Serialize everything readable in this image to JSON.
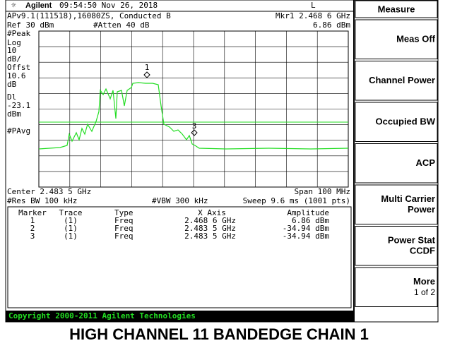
{
  "status_bar": {
    "brand": "Agilent",
    "time": "09:54:50  Nov 26, 2018",
    "mode": "L"
  },
  "header": {
    "setup": "APv9.1(111518),16080ZS, Conducted B",
    "marker_freq": "Mkr1  2.468 6 GHz",
    "ref": "Ref 30 dBm",
    "atten": "#Atten 40 dB",
    "marker_amp": "6.86 dBm"
  },
  "left_labels": [
    "#Peak",
    "Log",
    "10",
    "dB/",
    "Offst",
    "10.6",
    "dB",
    "Dl",
    "-23.1",
    "dBm",
    "#PAvg"
  ],
  "footer": {
    "center": "Center 2.483 5 GHz",
    "span": "Span 100 MHz",
    "rbw": "#Res BW 100 kHz",
    "vbw": "#VBW 300 kHz",
    "sweep": "Sweep 9.6 ms (1001 pts)"
  },
  "marker_labels": [
    "1",
    "3"
  ],
  "table": {
    "columns": [
      "Marker",
      "Trace",
      "Type",
      "X Axis",
      "Amplitude"
    ],
    "rows": [
      [
        "1",
        "(1)",
        "Freq",
        "2.468 6 GHz",
        "6.86 dBm"
      ],
      [
        "2",
        "(1)",
        "Freq",
        "2.483 5 GHz",
        "-34.94 dBm"
      ],
      [
        "3",
        "(1)",
        "Freq",
        "2.483 5 GHz",
        "-34.94 dBm"
      ]
    ]
  },
  "menu": {
    "title": "Measure",
    "keys": [
      [
        "Meas Off"
      ],
      [
        "Channel Power"
      ],
      [
        "Occupied BW"
      ],
      [
        "ACP"
      ],
      [
        "Multi Carrier",
        "Power"
      ],
      [
        "Power Stat",
        "CCDF"
      ],
      [
        "More",
        "1 of 2"
      ]
    ]
  },
  "copyright": "Copyright 2000-2011 Agilent Technologies",
  "caption": "HIGH CHANNEL 11 BANDEDGE CHAIN 1"
}
